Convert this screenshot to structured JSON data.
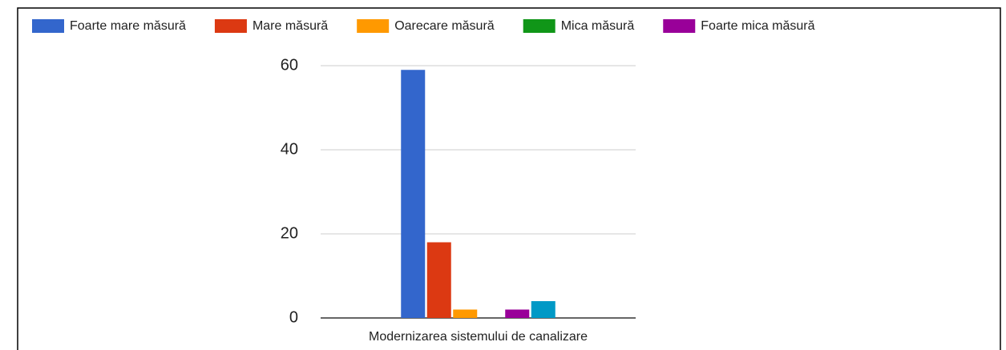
{
  "chart_data": {
    "type": "bar",
    "categories": [
      "Modernizarea sistemului de canalizare"
    ],
    "series": [
      {
        "name": "Foarte mare măsură",
        "color": "#3366cc",
        "values": [
          59
        ]
      },
      {
        "name": "Mare măsură",
        "color": "#dc3912",
        "values": [
          18
        ]
      },
      {
        "name": "Oarecare măsură",
        "color": "#ff9900",
        "values": [
          2
        ]
      },
      {
        "name": "Mica măsură",
        "color": "#109618",
        "values": [
          0
        ]
      },
      {
        "name": "Foarte mica măsură",
        "color": "#990099",
        "values": [
          2
        ]
      },
      {
        "color": "#0099c6",
        "values": [
          4
        ]
      }
    ],
    "ylim": [
      0,
      60
    ],
    "yticks": [
      0,
      20,
      40,
      60
    ],
    "grid": true,
    "legend": "top"
  }
}
